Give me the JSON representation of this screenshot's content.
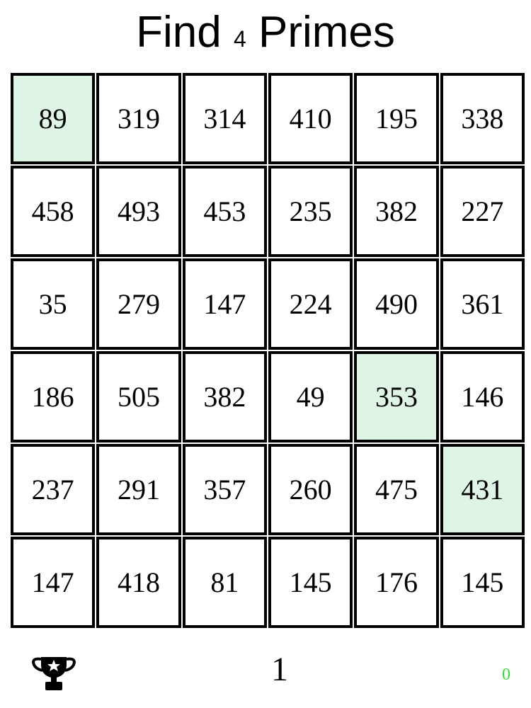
{
  "title": {
    "prefix": "Find",
    "count": "4",
    "suffix": "Primes"
  },
  "highlight_color": "#def5e6",
  "grid": [
    [
      "89",
      "319",
      "314",
      "410",
      "195",
      "338"
    ],
    [
      "458",
      "493",
      "453",
      "235",
      "382",
      "227"
    ],
    [
      "35",
      "279",
      "147",
      "224",
      "490",
      "361"
    ],
    [
      "186",
      "505",
      "382",
      "49",
      "353",
      "146"
    ],
    [
      "237",
      "291",
      "357",
      "260",
      "475",
      "431"
    ],
    [
      "147",
      "418",
      "81",
      "145",
      "176",
      "145"
    ]
  ],
  "selected": [
    [
      0,
      0
    ],
    [
      3,
      4
    ],
    [
      4,
      5
    ]
  ],
  "footer": {
    "trophy_icon": "trophy-star-icon",
    "level": "1",
    "score": "0",
    "score_color": "#33dd33"
  }
}
